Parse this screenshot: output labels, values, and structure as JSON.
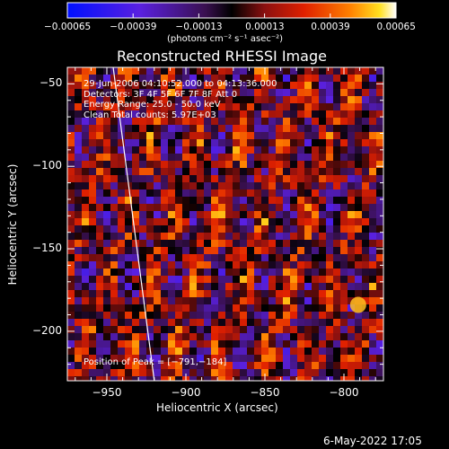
{
  "chart_data": {
    "type": "heatmap",
    "title": "Reconstructed RHESSI Image",
    "xlabel": "Heliocentric X (arcsec)",
    "ylabel": "Heliocentric Y (arcsec)",
    "xlim": [
      -975,
      -775
    ],
    "ylim": [
      -230,
      -40
    ],
    "xticks": [
      -950,
      -900,
      -850,
      -800
    ],
    "yticks": [
      -50,
      -100,
      -150,
      -200
    ],
    "xtick_labels": [
      "−950",
      "−900",
      "−850",
      "−800"
    ],
    "ytick_labels": [
      "−50",
      "−100",
      "−150",
      "−200"
    ],
    "colorbar": {
      "range": [
        -0.00065,
        0.00065
      ],
      "ticks": [
        -0.00065,
        -0.00039,
        -0.00013,
        0.00013,
        0.00039,
        0.00065
      ],
      "tick_labels": [
        "−0.00065",
        "−0.00039",
        "−0.00013",
        "0.00013",
        "0.00039",
        "0.00065"
      ],
      "units": "(photons cm⁻² s⁻¹ asec⁻²)"
    },
    "annotations": [
      "29-Jun-2006 04:10:52.000 to 04:13:36.000",
      "Detectors: 3F 4F 5F 6F 7F 8F Att 0",
      "Energy Range: 25.0 - 50.0 keV",
      "Clean     Total counts: 5.97E+03"
    ],
    "peak_label": "Position of Peak = [−791,−184]",
    "peak": [
      -791,
      -184
    ],
    "limb_line": [
      [
        -946,
        -40
      ],
      [
        -920,
        -230
      ]
    ]
  },
  "footer": {
    "date": "6-May-2022 17:05"
  },
  "colors": {
    "background": "#000000",
    "foreground": "#ffffff"
  }
}
